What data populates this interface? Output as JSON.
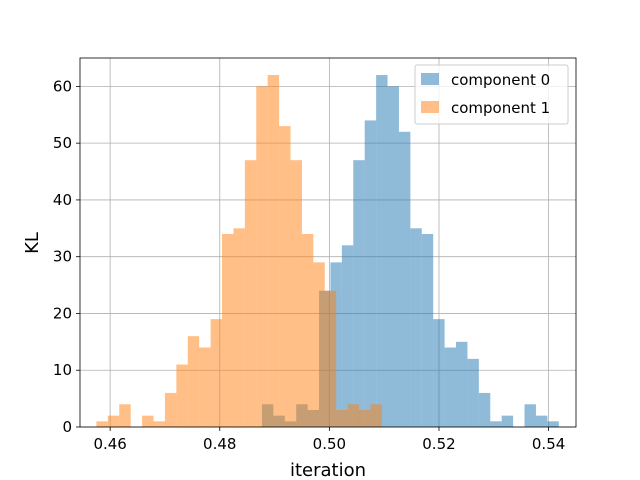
{
  "chart_data": {
    "type": "bar",
    "histogram": true,
    "xlabel": "iteration",
    "ylabel": "KL",
    "xlim": [
      0.4545,
      0.545
    ],
    "ylim": [
      0,
      65
    ],
    "xticks": [
      "0.46",
      "0.48",
      "0.50",
      "0.52",
      "0.54"
    ],
    "xtick_values": [
      0.46,
      0.48,
      0.5,
      0.52,
      0.54
    ],
    "yticks": [
      "0",
      "10",
      "20",
      "30",
      "40",
      "50",
      "60"
    ],
    "ytick_values": [
      0,
      10,
      20,
      30,
      40,
      50,
      60
    ],
    "grid": true,
    "legend_position": "top-right",
    "series": [
      {
        "name": "component 0",
        "color": "#1f77b4",
        "alpha": 0.5,
        "bin_start": 0.4877,
        "bin_width": 0.002083,
        "values": [
          4,
          2,
          1,
          4,
          3,
          24,
          29,
          32,
          47,
          54,
          62,
          60,
          52,
          35,
          34,
          19,
          14,
          15,
          12,
          6,
          1,
          2,
          0,
          4,
          2,
          1
        ]
      },
      {
        "name": "component 1",
        "color": "#ff7f0e",
        "alpha": 0.5,
        "bin_start": 0.4575,
        "bin_width": 0.002083,
        "values": [
          1,
          2,
          4,
          0,
          2,
          1,
          6,
          11,
          16,
          14,
          19,
          34,
          35,
          47,
          60,
          62,
          53,
          47,
          34,
          29,
          24,
          3,
          4,
          3,
          4
        ]
      }
    ]
  }
}
